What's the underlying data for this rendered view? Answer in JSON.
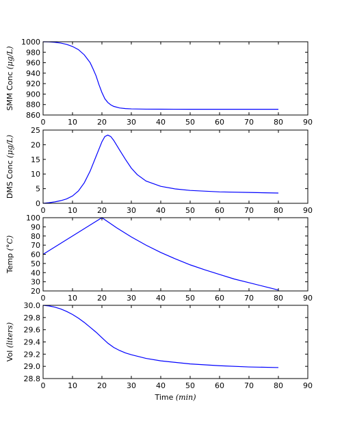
{
  "chart_data": [
    {
      "type": "line",
      "title": "",
      "xlabel": "",
      "ylabel": "SMM Conc",
      "ylabel_unit": "(μg/L)",
      "xlim": [
        0,
        90
      ],
      "ylim": [
        860,
        1000
      ],
      "xticks": [
        0,
        10,
        20,
        30,
        40,
        50,
        60,
        70,
        80,
        90
      ],
      "yticks": [
        860,
        880,
        900,
        920,
        940,
        960,
        980,
        1000
      ],
      "grid": false,
      "series": [
        {
          "color": "#0000ff",
          "x": [
            0,
            2,
            4,
            6,
            8,
            10,
            12,
            14,
            16,
            17,
            18,
            19,
            20,
            21,
            22,
            23,
            24,
            26,
            28,
            30,
            35,
            40,
            50,
            60,
            70,
            80
          ],
          "y": [
            1000,
            999.8,
            999,
            997.5,
            995,
            991,
            985,
            975,
            960,
            948,
            935,
            918,
            903,
            891,
            884,
            879.5,
            876.5,
            873.5,
            872.3,
            871.7,
            871.2,
            871.1,
            871,
            871,
            871,
            871
          ]
        }
      ]
    },
    {
      "type": "line",
      "title": "",
      "xlabel": "",
      "ylabel": "DMS Conc",
      "ylabel_unit": "(μg/L)",
      "xlim": [
        0,
        90
      ],
      "ylim": [
        0,
        25
      ],
      "xticks": [
        0,
        10,
        20,
        30,
        40,
        50,
        60,
        70,
        80,
        90
      ],
      "yticks": [
        0,
        5,
        10,
        15,
        20,
        25
      ],
      "grid": false,
      "series": [
        {
          "color": "#0000ff",
          "x": [
            0,
            2,
            4,
            6,
            8,
            10,
            12,
            14,
            16,
            18,
            19,
            20,
            21,
            22,
            23,
            24,
            26,
            28,
            30,
            32,
            35,
            40,
            45,
            50,
            60,
            70,
            80
          ],
          "y": [
            0,
            0.2,
            0.5,
            0.9,
            1.5,
            2.5,
            4.2,
            7,
            11,
            16,
            18.5,
            21,
            22.8,
            23.3,
            22.8,
            21.5,
            18.2,
            15,
            12,
            9.8,
            7.6,
            5.8,
            4.9,
            4.4,
            3.9,
            3.7,
            3.5
          ]
        }
      ]
    },
    {
      "type": "line",
      "title": "",
      "xlabel": "",
      "ylabel": "Temp",
      "ylabel_unit": "(°C)",
      "xlim": [
        0,
        90
      ],
      "ylim": [
        20,
        100
      ],
      "xticks": [
        0,
        10,
        20,
        30,
        40,
        50,
        60,
        70,
        80,
        90
      ],
      "yticks": [
        20,
        30,
        40,
        50,
        60,
        70,
        80,
        90,
        100
      ],
      "grid": false,
      "series": [
        {
          "color": "#0000ff",
          "x": [
            0,
            20,
            25,
            30,
            35,
            40,
            45,
            50,
            55,
            60,
            65,
            70,
            75,
            80
          ],
          "y": [
            60,
            100,
            89,
            79,
            70,
            62,
            55,
            48.5,
            43,
            38,
            33,
            29,
            25,
            21
          ]
        }
      ]
    },
    {
      "type": "line",
      "title": "",
      "xlabel": "Time",
      "xlabel_unit": "(min)",
      "ylabel": "Vol",
      "ylabel_unit": "(liters)",
      "xlim": [
        0,
        90
      ],
      "ylim": [
        28.8,
        30.0
      ],
      "xticks": [
        0,
        10,
        20,
        30,
        40,
        50,
        60,
        70,
        80,
        90
      ],
      "yticks": [
        28.8,
        29.0,
        29.2,
        29.4,
        29.6,
        29.8,
        30.0
      ],
      "grid": false,
      "series": [
        {
          "color": "#0000ff",
          "x": [
            0,
            2,
            4,
            6,
            8,
            10,
            12,
            14,
            16,
            18,
            20,
            22,
            24,
            26,
            28,
            30,
            35,
            40,
            50,
            60,
            70,
            80
          ],
          "y": [
            30.0,
            29.99,
            29.97,
            29.94,
            29.9,
            29.85,
            29.79,
            29.72,
            29.64,
            29.56,
            29.47,
            29.38,
            29.31,
            29.26,
            29.22,
            29.19,
            29.13,
            29.09,
            29.04,
            29.01,
            28.99,
            28.98
          ]
        }
      ]
    }
  ]
}
